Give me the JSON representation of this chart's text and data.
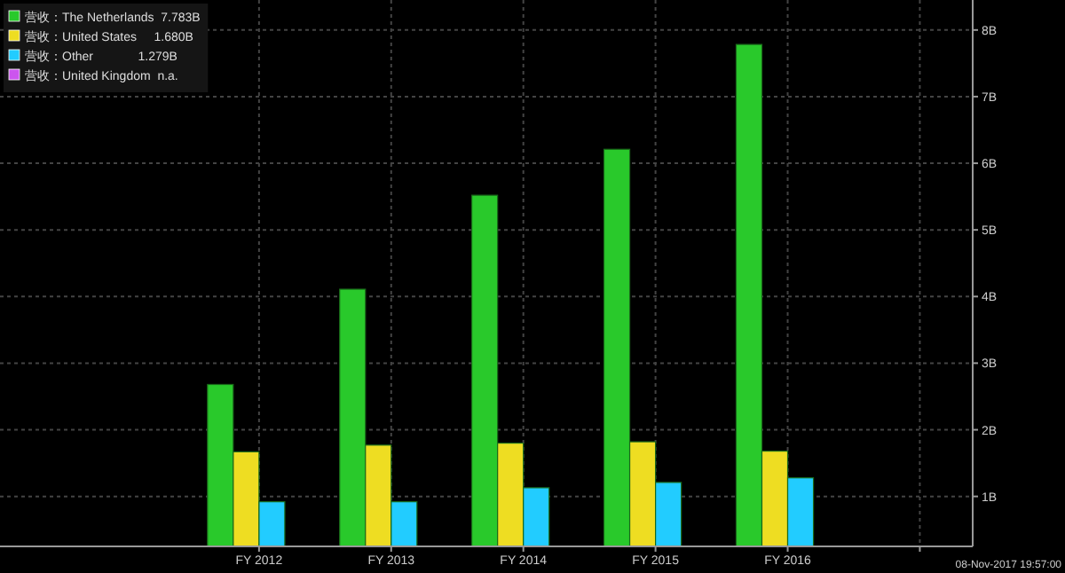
{
  "chart_data": {
    "type": "bar",
    "categories": [
      "FY 2012",
      "FY 2013",
      "FY 2014",
      "FY 2015",
      "FY 2016",
      null
    ],
    "series": [
      {
        "name": "营收：The Netherlands  7.783B",
        "color": "#29c92b",
        "values": [
          2.68,
          4.11,
          5.52,
          6.21,
          7.783,
          null
        ]
      },
      {
        "name": "营收：United States     1.680B",
        "color": "#eedd22",
        "values": [
          1.67,
          1.77,
          1.8,
          1.82,
          1.68,
          null
        ]
      },
      {
        "name": "营收：Other             1.279B",
        "color": "#22ccff",
        "values": [
          0.92,
          0.92,
          1.13,
          1.21,
          1.279,
          null
        ]
      },
      {
        "name": "营收：United Kingdom  n.a.",
        "color": "#cc55ee",
        "values": [
          null,
          null,
          null,
          null,
          null,
          null
        ]
      }
    ],
    "ylim": [
      0.25,
      8.45
    ],
    "yticks": [
      {
        "value": 1,
        "label": "1B"
      },
      {
        "value": 2,
        "label": "2B"
      },
      {
        "value": 3,
        "label": "3B"
      },
      {
        "value": 4,
        "label": "4B"
      },
      {
        "value": 5,
        "label": "5B"
      },
      {
        "value": 6,
        "label": "6B"
      },
      {
        "value": 7,
        "label": "7B"
      },
      {
        "value": 8,
        "label": "8B"
      }
    ],
    "grid": true,
    "legend": "top left",
    "annotations": [
      "08-Nov-2017 19:57:00"
    ]
  }
}
